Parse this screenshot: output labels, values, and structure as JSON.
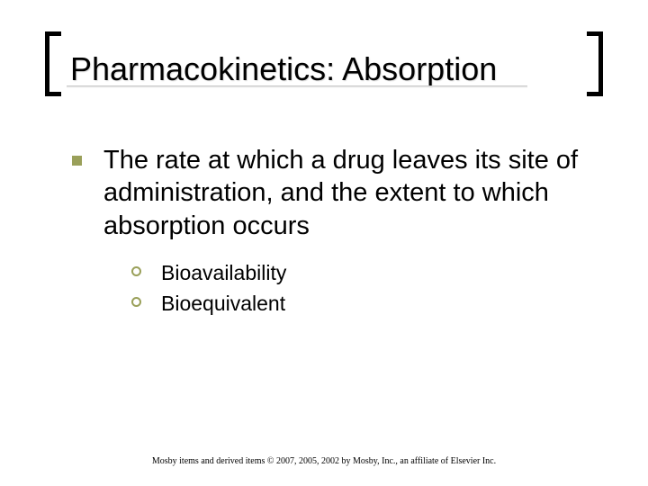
{
  "title": "Pharmacokinetics: Absorption",
  "title_fontsize": 36,
  "title_color": "#000000",
  "bracket_color": "#000000",
  "bracket_thickness": 5,
  "background_color": "#ffffff",
  "bullets": {
    "level1_bullet_color": "#9aa05a",
    "level2_bullet_color": "#9aa05a",
    "level1": [
      {
        "text": "The rate at which a drug leaves its site of administration, and the extent to which absorption occurs",
        "fontsize": 29,
        "children": [
          {
            "text": "Bioavailability",
            "fontsize": 23
          },
          {
            "text": "Bioequivalent",
            "fontsize": 23
          }
        ]
      }
    ]
  },
  "footer": "Mosby items and derived items © 2007, 2005, 2002 by Mosby, Inc., an affiliate of Elsevier Inc.",
  "footer_fontsize": 10
}
